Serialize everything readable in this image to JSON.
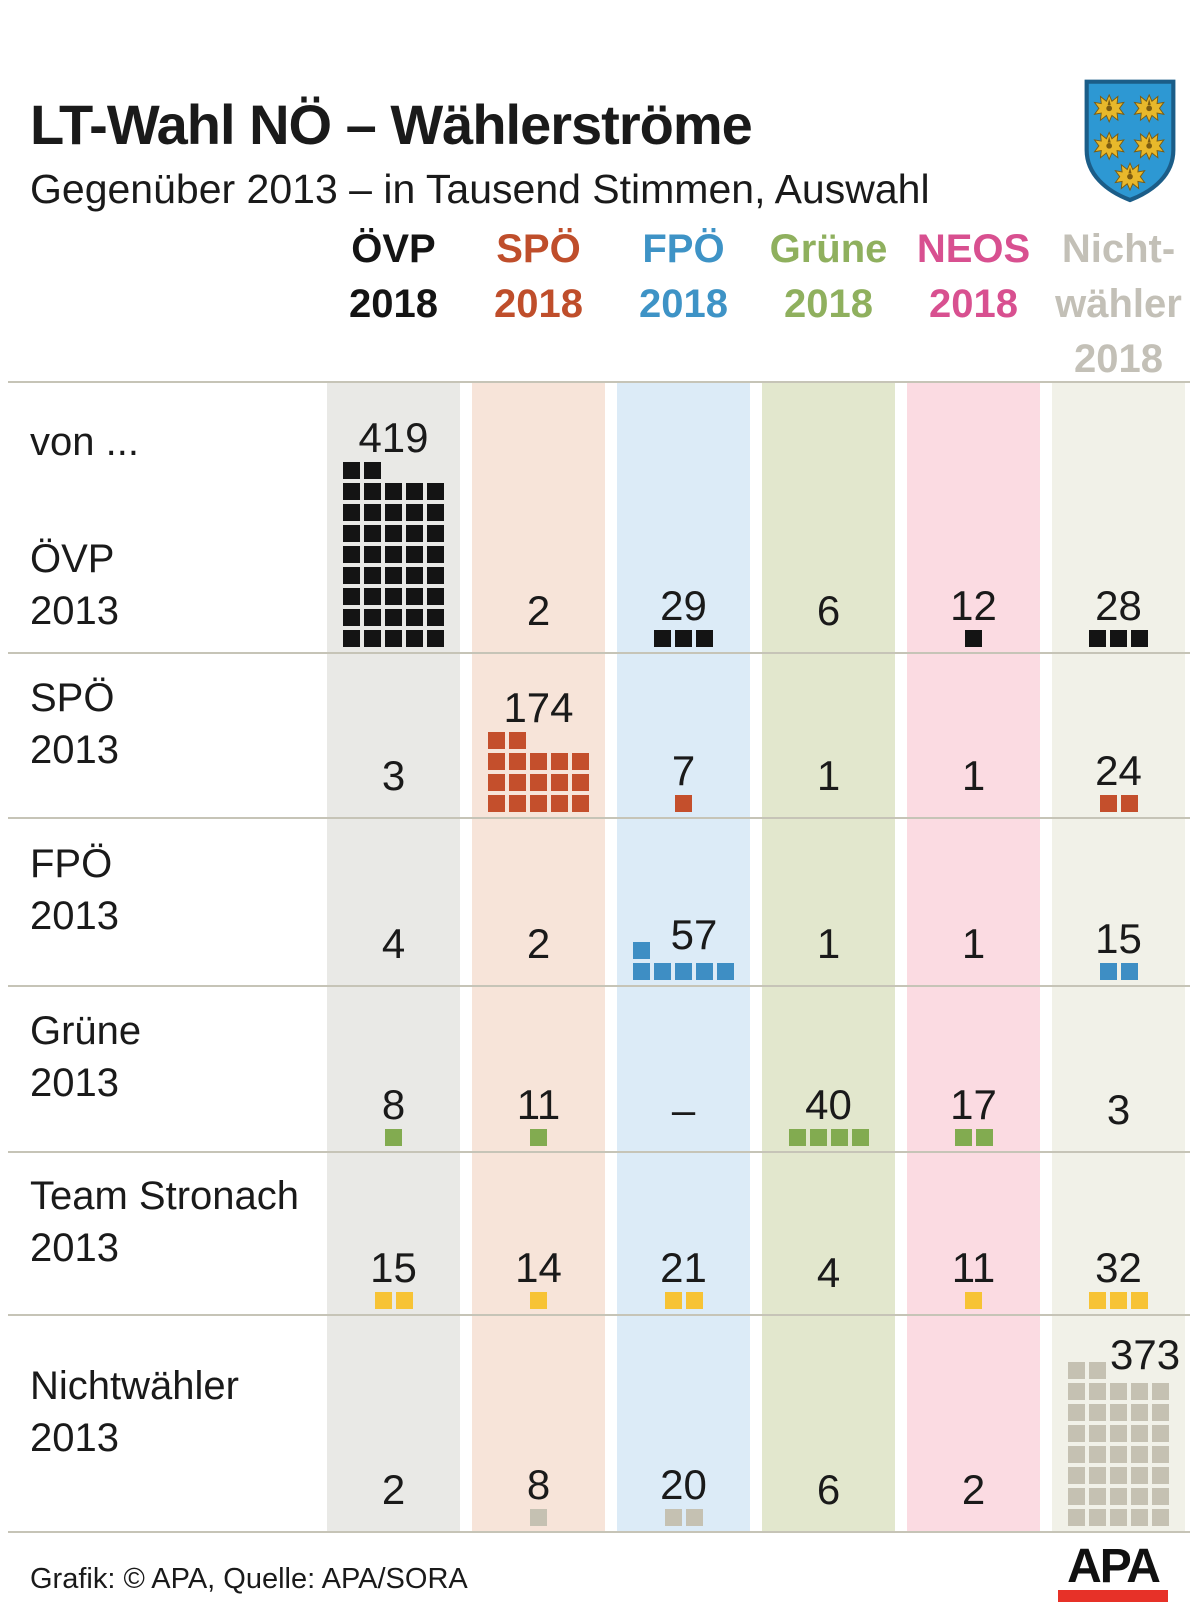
{
  "header": {
    "title": "LT-Wahl NÖ – Wählerströme",
    "subtitle": "Gegenüber 2013 – in Tausend Stimmen, Auswahl"
  },
  "row_axis_label": "von ...",
  "crest": {
    "name": "Landeswappen Niederösterreich",
    "shield_color": "#2d98d3",
    "eagle_color": "#e8b82b"
  },
  "columns": [
    {
      "id": "oevp",
      "label_lines": [
        "ÖVP",
        "2018"
      ],
      "color": "#141414",
      "band_color": "#e9e9e6"
    },
    {
      "id": "spoe",
      "label_lines": [
        "SPÖ",
        "2018"
      ],
      "color": "#bf4e2b",
      "band_color": "#f7e4d9"
    },
    {
      "id": "fpoe",
      "label_lines": [
        "FPÖ",
        "2018"
      ],
      "color": "#3e93c6",
      "band_color": "#dcebf7"
    },
    {
      "id": "gruene",
      "label_lines": [
        "Grüne",
        "2018"
      ],
      "color": "#8fb05e",
      "band_color": "#e2e7cd"
    },
    {
      "id": "neos",
      "label_lines": [
        "NEOS",
        "2018"
      ],
      "color": "#d85090",
      "band_color": "#fbdbe2"
    },
    {
      "id": "nichtwaehler",
      "label_lines": [
        "Nicht-",
        "wähler",
        "2018"
      ],
      "color": "#c3c0b7",
      "band_color": "#f1f1e8"
    }
  ],
  "rows": [
    {
      "id": "oevp-2013",
      "label_lines": [
        "ÖVP",
        "2013"
      ],
      "square_color": "#141414",
      "cells": [
        {
          "value": "419",
          "squares": 42,
          "label_pos": "above"
        },
        {
          "value": "2",
          "squares": 0
        },
        {
          "value": "29",
          "squares": 3
        },
        {
          "value": "6",
          "squares": 0
        },
        {
          "value": "12",
          "squares": 1
        },
        {
          "value": "28",
          "squares": 3
        }
      ]
    },
    {
      "id": "spoe-2013",
      "label_lines": [
        "SPÖ",
        "2013"
      ],
      "square_color": "#c44f2c",
      "cells": [
        {
          "value": "3",
          "squares": 0
        },
        {
          "value": "174",
          "squares": 17,
          "label_pos": "above"
        },
        {
          "value": "7",
          "squares": 1
        },
        {
          "value": "1",
          "squares": 0
        },
        {
          "value": "1",
          "squares": 0
        },
        {
          "value": "24",
          "squares": 2
        }
      ]
    },
    {
      "id": "fpoe-2013",
      "label_lines": [
        "FPÖ",
        "2013"
      ],
      "square_color": "#3e8ec4",
      "cells": [
        {
          "value": "4",
          "squares": 0
        },
        {
          "value": "2",
          "squares": 0
        },
        {
          "value": "57",
          "squares": 6,
          "label_pos": "beside"
        },
        {
          "value": "1",
          "squares": 0
        },
        {
          "value": "1",
          "squares": 0
        },
        {
          "value": "15",
          "squares": 2
        }
      ]
    },
    {
      "id": "gruene-2013",
      "label_lines": [
        "Grüne",
        "2013"
      ],
      "square_color": "#82ab50",
      "cells": [
        {
          "value": "8",
          "squares": 1
        },
        {
          "value": "11",
          "squares": 1
        },
        {
          "value": "–",
          "squares": 0
        },
        {
          "value": "40",
          "squares": 4
        },
        {
          "value": "17",
          "squares": 2
        },
        {
          "value": "3",
          "squares": 0
        }
      ]
    },
    {
      "id": "team-stronach-2013",
      "label_lines": [
        "Team Stronach",
        "2013"
      ],
      "square_color": "#f7c335",
      "cells": [
        {
          "value": "15",
          "squares": 2
        },
        {
          "value": "14",
          "squares": 1
        },
        {
          "value": "21",
          "squares": 2
        },
        {
          "value": "4",
          "squares": 0
        },
        {
          "value": "11",
          "squares": 1
        },
        {
          "value": "32",
          "squares": 3
        }
      ]
    },
    {
      "id": "nichtwaehler-2013",
      "label_lines": [
        "Nichtwähler",
        "2013"
      ],
      "square_color": "#c5c1b2",
      "cells": [
        {
          "value": "2",
          "squares": 0
        },
        {
          "value": "8",
          "squares": 1
        },
        {
          "value": "20",
          "squares": 2
        },
        {
          "value": "6",
          "squares": 0
        },
        {
          "value": "2",
          "squares": 0
        },
        {
          "value": "373",
          "squares": 37,
          "label_pos": "beside"
        }
      ]
    }
  ],
  "footer": {
    "credit": "Grafik: © APA, Quelle: APA/SORA",
    "logo_text": "APA",
    "logo_bar_color": "#e73128"
  },
  "chart_data": {
    "type": "pictogram",
    "title": "LT-Wahl NÖ – Wählerströme",
    "subtitle": "Gegenüber 2013 – in Tausend Stimmen, Auswahl",
    "unit": "Tausend Stimmen",
    "square_value_thousand": 10,
    "columns_2018": [
      "ÖVP",
      "SPÖ",
      "FPÖ",
      "Grüne",
      "NEOS",
      "Nichtwähler"
    ],
    "rows_2013": [
      "ÖVP",
      "SPÖ",
      "FPÖ",
      "Grüne",
      "Team Stronach",
      "Nichtwähler"
    ],
    "values": [
      [
        419,
        2,
        29,
        6,
        12,
        28
      ],
      [
        3,
        174,
        7,
        1,
        1,
        24
      ],
      [
        4,
        2,
        57,
        1,
        1,
        15
      ],
      [
        8,
        11,
        null,
        40,
        17,
        3
      ],
      [
        15,
        14,
        21,
        4,
        11,
        32
      ],
      [
        2,
        8,
        20,
        6,
        2,
        373
      ]
    ]
  }
}
